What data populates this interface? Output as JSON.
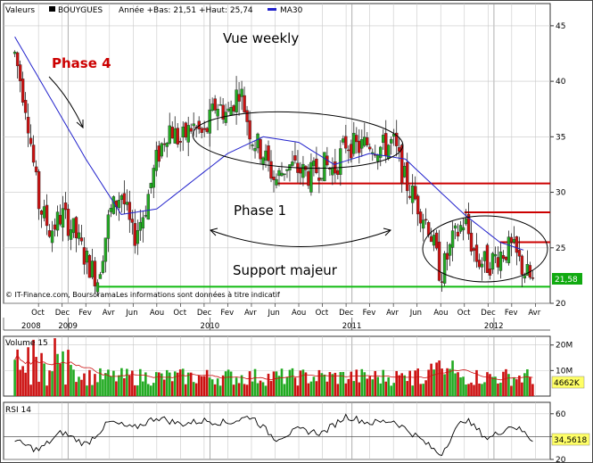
{
  "header": {
    "valeurs_label": "Valeurs",
    "ticker": "BOUYGUES",
    "period_info": "Année +Bas: 21,51 +Haut: 25,74",
    "ma_label": "MA30"
  },
  "colors": {
    "up": "#22aa22",
    "down": "#cc1111",
    "ma": "#2222cc",
    "resistance": "#cc0000",
    "support": "#11bb11",
    "annotation_red": "#cc0000",
    "last_price_bg": "#11aa11",
    "volume_badge_bg": "#ffff66",
    "rsi_badge_bg": "#ffff66"
  },
  "annotations": {
    "title": "Vue weekly",
    "phase4": "Phase 4",
    "phase1": "Phase 1",
    "support": "Support majeur",
    "credit": "© IT-Finance.com, BoursoramaLes informations sont données à titre indicatif"
  },
  "last_price": "21,58",
  "volume_panel": {
    "label": "Volume 15",
    "badge": "4662K"
  },
  "rsi_panel": {
    "label": "RSI 14",
    "badge": "34,5618"
  },
  "chart_data": {
    "type": "candlestick",
    "timeframe": "weekly",
    "x_range": [
      "2008-08",
      "2012-04"
    ],
    "price_ylim": [
      20,
      47
    ],
    "price_ticks": [
      20,
      25,
      30,
      35,
      40,
      45
    ],
    "month_labels": [
      "Oct",
      "Dec",
      "Fev",
      "Avr",
      "Jun",
      "Aou",
      "Oct",
      "Dec",
      "Fev",
      "Avr",
      "Jun",
      "Aou",
      "Oct",
      "Dec",
      "Fev",
      "Avr",
      "Jun",
      "Aou",
      "Oct",
      "Dec",
      "Fev",
      "Avr"
    ],
    "year_labels": [
      "2008",
      "2009",
      "2010",
      "2011",
      "2012"
    ],
    "price_path": [
      {
        "x": "2008-08",
        "y": 42.5
      },
      {
        "x": "2008-09",
        "y": 37.5
      },
      {
        "x": "2008-10",
        "y": 29.0
      },
      {
        "x": "2008-11",
        "y": 26.5
      },
      {
        "x": "2008-12",
        "y": 28.0
      },
      {
        "x": "2009-01",
        "y": 26.5
      },
      {
        "x": "2009-02",
        "y": 24.0
      },
      {
        "x": "2009-03",
        "y": 22.2
      },
      {
        "x": "2009-04",
        "y": 28.0
      },
      {
        "x": "2009-05",
        "y": 30.0
      },
      {
        "x": "2009-06",
        "y": 25.8
      },
      {
        "x": "2009-07",
        "y": 28.5
      },
      {
        "x": "2009-08",
        "y": 33.0
      },
      {
        "x": "2009-09",
        "y": 36.0
      },
      {
        "x": "2009-10",
        "y": 34.5
      },
      {
        "x": "2009-11",
        "y": 36.0
      },
      {
        "x": "2009-12",
        "y": 35.0
      },
      {
        "x": "2010-01",
        "y": 38.0
      },
      {
        "x": "2010-02",
        "y": 37.0
      },
      {
        "x": "2010-03",
        "y": 39.5
      },
      {
        "x": "2010-04",
        "y": 35.0
      },
      {
        "x": "2010-05",
        "y": 33.5
      },
      {
        "x": "2010-06",
        "y": 31.0
      },
      {
        "x": "2010-07",
        "y": 32.5
      },
      {
        "x": "2010-08",
        "y": 32.0
      },
      {
        "x": "2010-09",
        "y": 31.5
      },
      {
        "x": "2010-10",
        "y": 32.5
      },
      {
        "x": "2010-11",
        "y": 32.0
      },
      {
        "x": "2010-12",
        "y": 34.5
      },
      {
        "x": "2011-01",
        "y": 34.0
      },
      {
        "x": "2011-02",
        "y": 34.5
      },
      {
        "x": "2011-03",
        "y": 34.0
      },
      {
        "x": "2011-04",
        "y": 34.5
      },
      {
        "x": "2011-05",
        "y": 31.0
      },
      {
        "x": "2011-06",
        "y": 29.0
      },
      {
        "x": "2011-07",
        "y": 27.0
      },
      {
        "x": "2011-08",
        "y": 22.5
      },
      {
        "x": "2011-09",
        "y": 25.5
      },
      {
        "x": "2011-10",
        "y": 27.5
      },
      {
        "x": "2011-11",
        "y": 24.0
      },
      {
        "x": "2011-12",
        "y": 23.5
      },
      {
        "x": "2012-01",
        "y": 24.5
      },
      {
        "x": "2012-02",
        "y": 25.0
      },
      {
        "x": "2012-03",
        "y": 23.0
      },
      {
        "x": "2012-04",
        "y": 21.6
      }
    ],
    "ma30_path": [
      {
        "x": "2008-08",
        "y": 44.0
      },
      {
        "x": "2008-11",
        "y": 38.5
      },
      {
        "x": "2009-02",
        "y": 33.0
      },
      {
        "x": "2009-05",
        "y": 28.0
      },
      {
        "x": "2009-08",
        "y": 28.5
      },
      {
        "x": "2009-11",
        "y": 31.0
      },
      {
        "x": "2010-02",
        "y": 33.5
      },
      {
        "x": "2010-05",
        "y": 35.0
      },
      {
        "x": "2010-08",
        "y": 34.5
      },
      {
        "x": "2010-11",
        "y": 32.5
      },
      {
        "x": "2011-02",
        "y": 33.5
      },
      {
        "x": "2011-05",
        "y": 33.0
      },
      {
        "x": "2011-08",
        "y": 30.0
      },
      {
        "x": "2011-10",
        "y": 28.0
      },
      {
        "x": "2012-01",
        "y": 25.5
      },
      {
        "x": "2012-03",
        "y": 24.8
      }
    ],
    "horizontal_levels": [
      {
        "y": 30.8,
        "from": "2010-06",
        "role": "resistance"
      },
      {
        "y": 28.2,
        "from": "2011-10",
        "role": "resistance"
      },
      {
        "y": 25.5,
        "from": "2012-01",
        "role": "resistance"
      },
      {
        "y": 21.5,
        "from": "2009-03",
        "role": "support"
      }
    ],
    "volume_ticks": [
      "20M",
      "10M"
    ],
    "volume_ylim": [
      0,
      22
    ],
    "rsi_ticks": [
      20,
      40,
      60
    ],
    "rsi_ylim": [
      20,
      70
    ],
    "rsi_path": [
      {
        "x": "2008-08",
        "y": 36
      },
      {
        "x": "2008-10",
        "y": 28
      },
      {
        "x": "2008-12",
        "y": 44
      },
      {
        "x": "2009-02",
        "y": 33
      },
      {
        "x": "2009-04",
        "y": 53
      },
      {
        "x": "2009-06",
        "y": 47
      },
      {
        "x": "2009-08",
        "y": 57
      },
      {
        "x": "2009-10",
        "y": 51
      },
      {
        "x": "2009-12",
        "y": 54
      },
      {
        "x": "2010-02",
        "y": 52
      },
      {
        "x": "2010-04",
        "y": 58
      },
      {
        "x": "2010-06",
        "y": 38
      },
      {
        "x": "2010-08",
        "y": 46
      },
      {
        "x": "2010-10",
        "y": 43
      },
      {
        "x": "2010-12",
        "y": 58
      },
      {
        "x": "2011-02",
        "y": 52
      },
      {
        "x": "2011-04",
        "y": 54
      },
      {
        "x": "2011-06",
        "y": 40
      },
      {
        "x": "2011-08",
        "y": 24
      },
      {
        "x": "2011-09",
        "y": 42
      },
      {
        "x": "2011-10",
        "y": 56
      },
      {
        "x": "2011-12",
        "y": 38
      },
      {
        "x": "2012-02",
        "y": 50
      },
      {
        "x": "2012-03",
        "y": 44
      },
      {
        "x": "2012-04",
        "y": 34.6
      }
    ]
  }
}
